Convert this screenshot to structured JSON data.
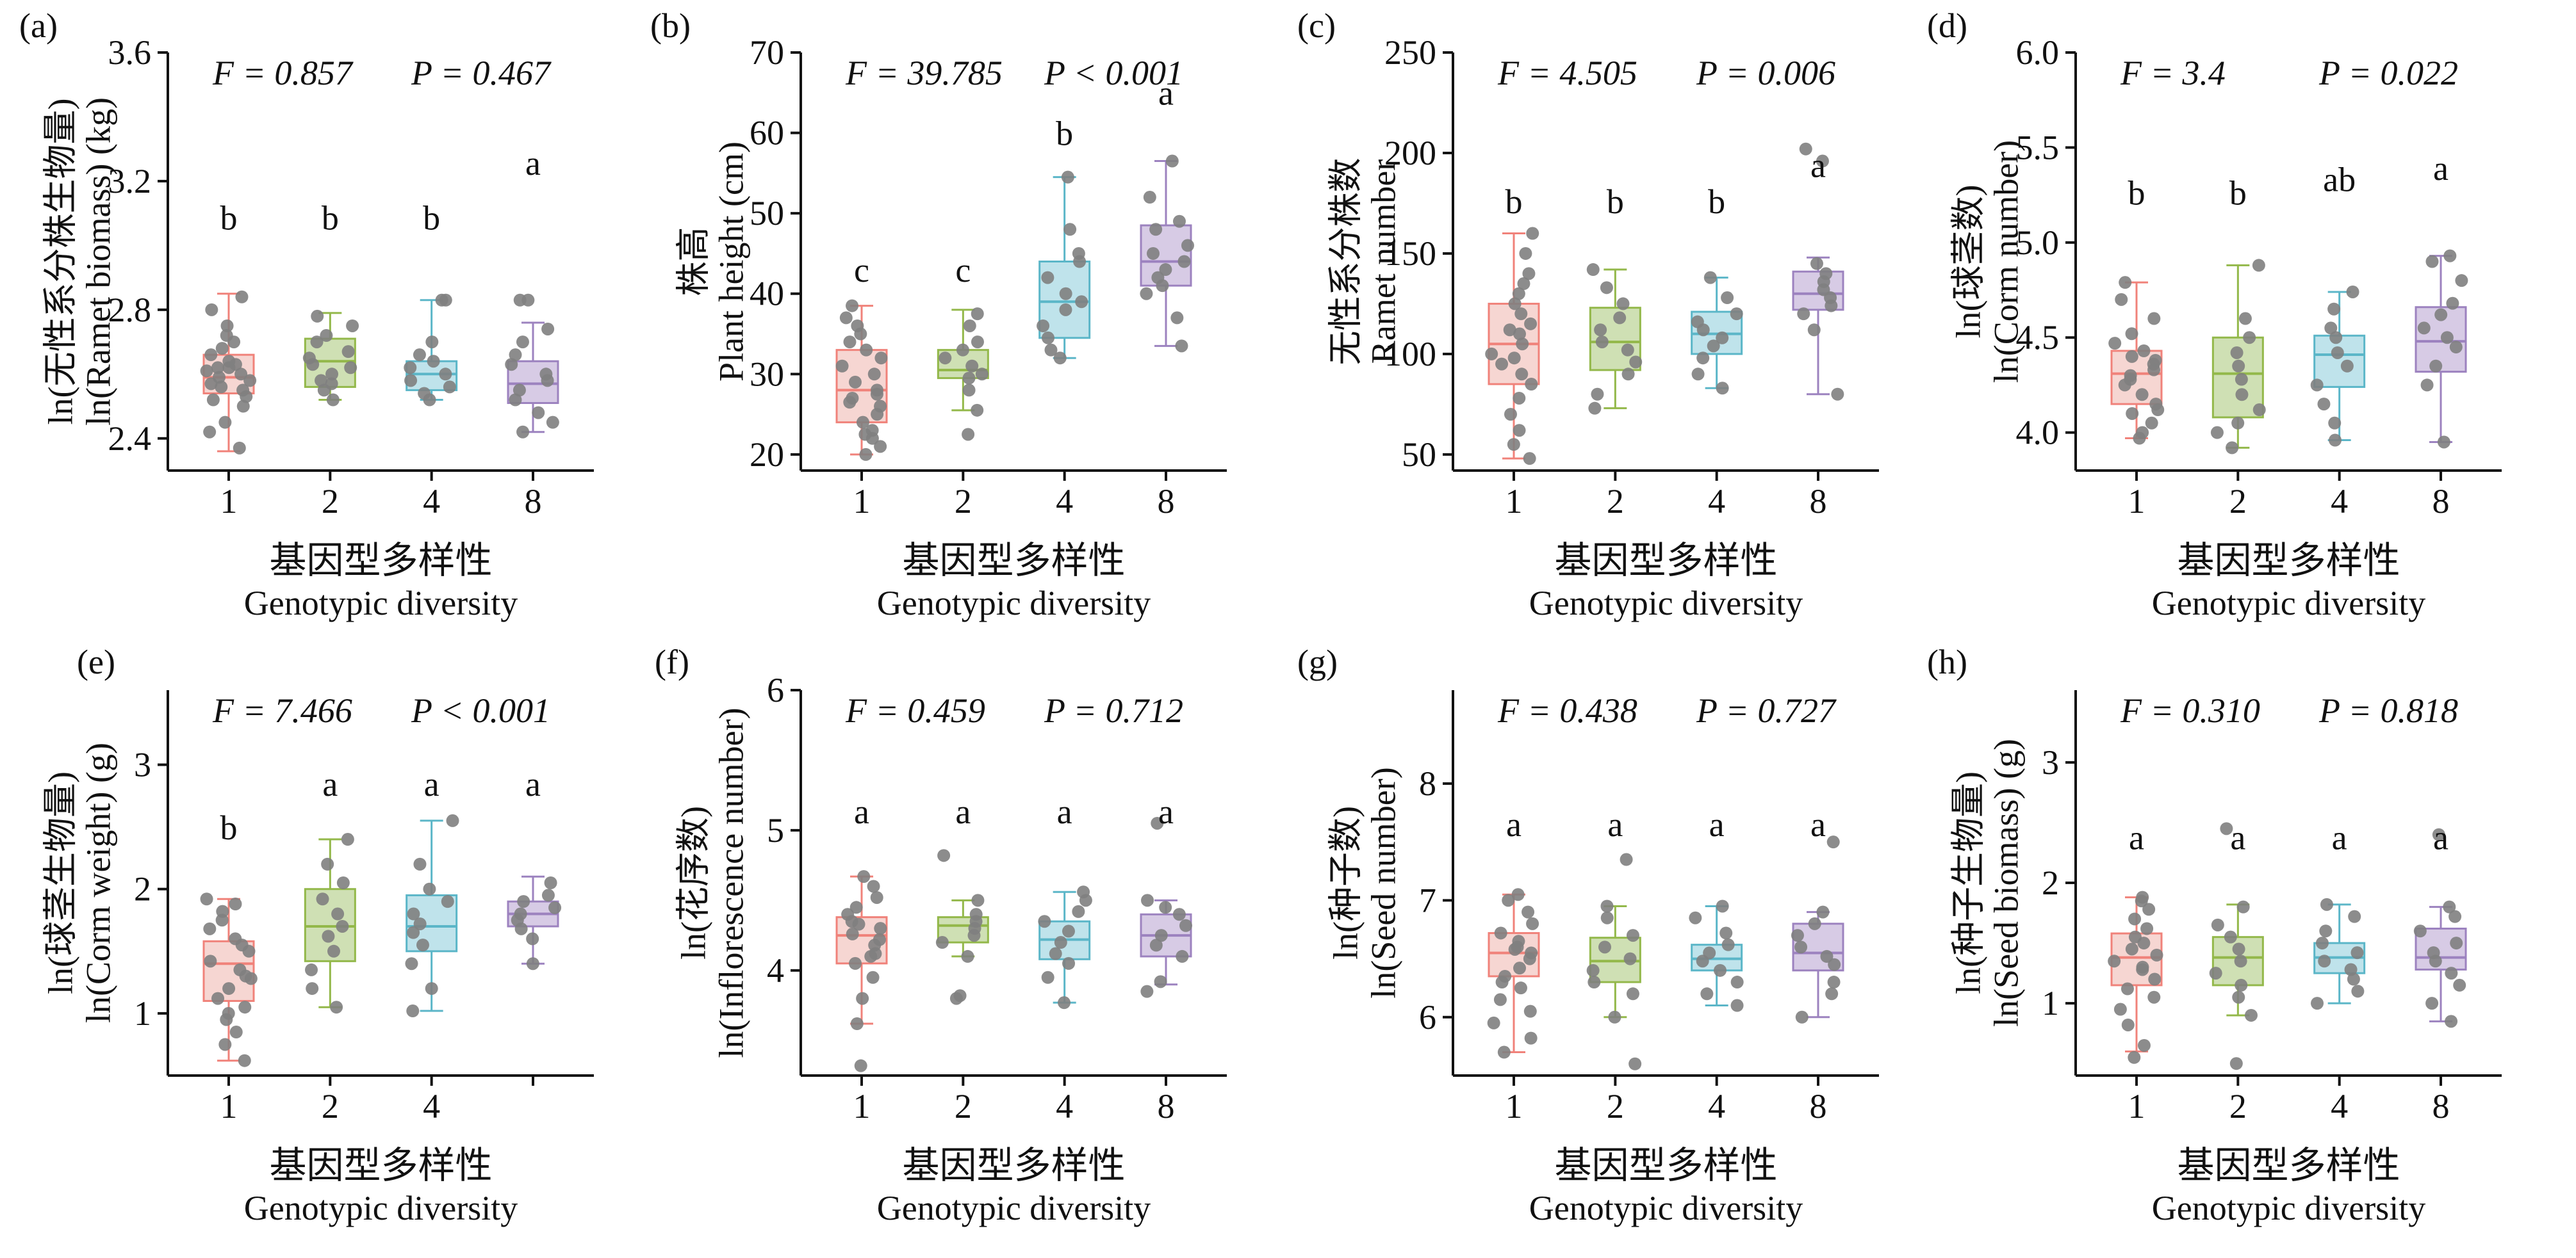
{
  "figure": {
    "group_colors": {
      "1": "#f0827a",
      "2": "#93b84a",
      "4": "#5bb6c8",
      "8": "#9c82bf"
    },
    "group_fills": {
      "1": "#f6d6d2",
      "2": "#cfe0b4",
      "4": "#bfe3eb",
      "8": "#d7cbe5"
    },
    "point_color": "#7f7f7f"
  },
  "chart_data": [
    {
      "panel": "(a)",
      "type": "box",
      "title": "",
      "ylabel_cn": "ln(无性系分株生物量)",
      "ylabel_en": "ln(Ramet biomass) (kg)",
      "xlabel_cn": "基因型多样性",
      "xlabel_en": "Genotypic diversity",
      "stat_f": "F = 0.857",
      "stat_p": "P = 0.467",
      "ylim": [
        2.3,
        3.6
      ],
      "yticks": [
        "2.4",
        "2.8",
        "3.2",
        "3.6"
      ],
      "categories": [
        "1",
        "2",
        "4",
        "8"
      ],
      "letters": [
        "b",
        "b",
        "b",
        "a"
      ],
      "letter_y": [
        3.05,
        3.05,
        3.05,
        3.22
      ],
      "boxes": [
        {
          "min": 2.36,
          "q1": 2.54,
          "median": 2.59,
          "q3": 2.66,
          "max": 2.85
        },
        {
          "min": 2.52,
          "q1": 2.56,
          "median": 2.64,
          "q3": 2.71,
          "max": 2.79
        },
        {
          "min": 2.52,
          "q1": 2.55,
          "median": 2.6,
          "q3": 2.64,
          "max": 2.83
        },
        {
          "min": 2.42,
          "q1": 2.51,
          "median": 2.57,
          "q3": 2.64,
          "max": 2.76
        }
      ],
      "points": [
        [
          2.37,
          2.42,
          2.45,
          2.5,
          2.52,
          2.55,
          2.57,
          2.58,
          2.59,
          2.6,
          2.61,
          2.62,
          2.63,
          2.64,
          2.66,
          2.68,
          2.7,
          2.72,
          2.75,
          2.8,
          2.84,
          2.53,
          2.56,
          2.62
        ],
        [
          2.52,
          2.55,
          2.58,
          2.6,
          2.63,
          2.65,
          2.67,
          2.7,
          2.72,
          2.75,
          2.78,
          2.57,
          2.62
        ],
        [
          2.52,
          2.54,
          2.56,
          2.58,
          2.6,
          2.62,
          2.64,
          2.66,
          2.7,
          2.83,
          2.83
        ],
        [
          2.42,
          2.45,
          2.48,
          2.52,
          2.55,
          2.58,
          2.6,
          2.63,
          2.66,
          2.7,
          2.74,
          2.83,
          2.83
        ]
      ]
    },
    {
      "panel": "(b)",
      "type": "box",
      "title": "",
      "ylabel_cn": "株高",
      "ylabel_en": "Plant height (cm)",
      "xlabel_cn": "基因型多样性",
      "xlabel_en": "Genotypic diversity",
      "stat_f": "F = 39.785",
      "stat_p": "P < 0.001",
      "ylim": [
        18,
        70
      ],
      "yticks": [
        "20",
        "30",
        "40",
        "50",
        "60",
        "70"
      ],
      "categories": [
        "1",
        "2",
        "4",
        "8"
      ],
      "letters": [
        "c",
        "c",
        "b",
        "a"
      ],
      "letter_y": [
        41.5,
        41.5,
        58.5,
        63.5
      ],
      "boxes": [
        {
          "min": 20,
          "q1": 24,
          "median": 28,
          "q3": 33,
          "max": 38.5
        },
        {
          "min": 25.5,
          "q1": 29.5,
          "median": 30.5,
          "q3": 33,
          "max": 38
        },
        {
          "min": 32,
          "q1": 34.5,
          "median": 39,
          "q3": 44,
          "max": 54.5
        },
        {
          "min": 33.5,
          "q1": 41,
          "median": 44,
          "q3": 48.5,
          "max": 56.5
        }
      ],
      "points": [
        [
          20,
          21,
          22,
          23,
          24,
          25,
          26,
          26.5,
          27,
          28,
          29,
          30,
          31,
          32,
          33,
          34,
          35,
          36,
          37,
          38.5,
          22.5,
          27.5
        ],
        [
          22.5,
          25.5,
          28,
          29.5,
          30,
          31,
          32,
          33,
          34,
          36,
          37.5
        ],
        [
          32,
          33,
          34.5,
          36,
          38,
          39,
          40,
          42,
          44,
          45,
          48,
          54.5
        ],
        [
          33.5,
          37,
          40,
          41,
          42,
          43,
          44,
          45,
          46,
          48,
          49,
          52,
          56.5
        ]
      ]
    },
    {
      "panel": "(c)",
      "type": "box",
      "title": "",
      "ylabel_cn": "无性系分株数",
      "ylabel_en": "Ramet number",
      "xlabel_cn": "基因型多样性",
      "xlabel_en": "Genotypic diversity",
      "stat_f": "F = 4.505",
      "stat_p": "P = 0.006",
      "ylim": [
        42,
        250
      ],
      "yticks": [
        "50",
        "100",
        "150",
        "200",
        "250"
      ],
      "categories": [
        "1",
        "2",
        "4",
        "8"
      ],
      "letters": [
        "b",
        "b",
        "b",
        "a"
      ],
      "letter_y": [
        170,
        170,
        170,
        188
      ],
      "boxes": [
        {
          "min": 48,
          "q1": 85,
          "median": 105,
          "q3": 125,
          "max": 160
        },
        {
          "min": 73,
          "q1": 92,
          "median": 106,
          "q3": 123,
          "max": 142
        },
        {
          "min": 83,
          "q1": 100,
          "median": 110,
          "q3": 121,
          "max": 138
        },
        {
          "min": 80,
          "q1": 122,
          "median": 130,
          "q3": 141,
          "max": 148
        }
      ],
      "points": [
        [
          48,
          55,
          62,
          70,
          78,
          85,
          90,
          95,
          100,
          105,
          110,
          115,
          120,
          125,
          130,
          135,
          140,
          150,
          160,
          98,
          112
        ],
        [
          73,
          80,
          90,
          96,
          102,
          106,
          112,
          118,
          125,
          133,
          142
        ],
        [
          83,
          90,
          98,
          104,
          108,
          112,
          116,
          120,
          128,
          138
        ],
        [
          80,
          112,
          120,
          124,
          128,
          132,
          136,
          140,
          145,
          196,
          202
        ]
      ]
    },
    {
      "panel": "(d)",
      "type": "box",
      "title": "",
      "ylabel_cn": "ln(球茎数)",
      "ylabel_en": "ln(Corm number)",
      "xlabel_cn": "基因型多样性",
      "xlabel_en": "Genotypic diversity",
      "stat_f": "F = 3.4",
      "stat_p": "P = 0.022",
      "ylim": [
        3.8,
        6.0
      ],
      "yticks": [
        "4.0",
        "4.5",
        "5.0",
        "5.5",
        "6.0"
      ],
      "categories": [
        "1",
        "2",
        "4",
        "8"
      ],
      "letters": [
        "b",
        "b",
        "ab",
        "a"
      ],
      "letter_y": [
        5.2,
        5.2,
        5.27,
        5.33
      ],
      "boxes": [
        {
          "min": 3.97,
          "q1": 4.15,
          "median": 4.31,
          "q3": 4.43,
          "max": 4.79
        },
        {
          "min": 3.92,
          "q1": 4.08,
          "median": 4.31,
          "q3": 4.5,
          "max": 4.88
        },
        {
          "min": 3.96,
          "q1": 4.24,
          "median": 4.41,
          "q3": 4.51,
          "max": 4.74
        },
        {
          "min": 3.95,
          "q1": 4.32,
          "median": 4.48,
          "q3": 4.66,
          "max": 4.93
        }
      ],
      "points": [
        [
          3.97,
          4.0,
          4.05,
          4.1,
          4.15,
          4.2,
          4.25,
          4.28,
          4.3,
          4.33,
          4.36,
          4.4,
          4.43,
          4.47,
          4.52,
          4.6,
          4.7,
          4.79,
          4.12,
          4.38
        ],
        [
          3.92,
          4.0,
          4.05,
          4.12,
          4.2,
          4.28,
          4.35,
          4.42,
          4.5,
          4.6,
          4.88
        ],
        [
          3.96,
          4.05,
          4.15,
          4.25,
          4.35,
          4.42,
          4.5,
          4.55,
          4.65,
          4.74
        ],
        [
          3.95,
          4.25,
          4.35,
          4.45,
          4.5,
          4.55,
          4.62,
          4.68,
          4.8,
          4.9,
          4.93
        ]
      ]
    },
    {
      "panel": "(e)",
      "type": "box",
      "title": "",
      "ylabel_cn": "ln(球茎生物量)",
      "ylabel_en": "ln(Corm weight) (g)",
      "xlabel_cn": "基因型多样性",
      "xlabel_en": "Genotypic diversity",
      "stat_f": "F = 7.466",
      "stat_p": "P < 0.001",
      "ylim": [
        0.5,
        3.6
      ],
      "yticks": [
        "1",
        "2",
        "3"
      ],
      "categories": [
        "1",
        "2",
        "4",
        "8"
      ],
      "xtick_labels": [
        "1",
        "2",
        "4",
        ""
      ],
      "letters": [
        "b",
        "a",
        "a",
        "a"
      ],
      "letter_y": [
        2.4,
        2.75,
        2.75,
        2.75
      ],
      "boxes": [
        {
          "min": 0.62,
          "q1": 1.1,
          "median": 1.4,
          "q3": 1.58,
          "max": 1.92
        },
        {
          "min": 1.05,
          "q1": 1.42,
          "median": 1.7,
          "q3": 2.0,
          "max": 2.4
        },
        {
          "min": 1.02,
          "q1": 1.5,
          "median": 1.7,
          "q3": 1.95,
          "max": 2.55
        },
        {
          "min": 1.4,
          "q1": 1.7,
          "median": 1.8,
          "q3": 1.9,
          "max": 2.1
        }
      ],
      "points": [
        [
          0.62,
          0.75,
          0.85,
          0.95,
          1.05,
          1.12,
          1.2,
          1.28,
          1.35,
          1.42,
          1.5,
          1.55,
          1.6,
          1.68,
          1.75,
          1.82,
          1.88,
          1.92,
          1.0,
          1.3
        ],
        [
          1.05,
          1.2,
          1.35,
          1.5,
          1.62,
          1.7,
          1.8,
          1.92,
          2.05,
          2.2,
          2.4
        ],
        [
          1.02,
          1.2,
          1.4,
          1.55,
          1.65,
          1.72,
          1.8,
          1.9,
          2.0,
          2.2,
          2.55
        ],
        [
          1.4,
          1.6,
          1.68,
          1.75,
          1.8,
          1.85,
          1.9,
          1.95,
          2.05
        ]
      ]
    },
    {
      "panel": "(f)",
      "type": "box",
      "title": "",
      "ylabel_cn": "ln(花序数)",
      "ylabel_en": "ln(Inflorescence number)",
      "xlabel_cn": "基因型多样性",
      "xlabel_en": "Genotypic diversity",
      "stat_f": "F = 0.459",
      "stat_p": "P = 0.712",
      "ylim": [
        3.25,
        6.0
      ],
      "yticks": [
        "4",
        "5",
        "6"
      ],
      "categories": [
        "1",
        "2",
        "4",
        "8"
      ],
      "letters": [
        "a",
        "a",
        "a",
        "a"
      ],
      "letter_y": [
        5.05,
        5.05,
        5.05,
        5.05
      ],
      "boxes": [
        {
          "min": 3.62,
          "q1": 4.05,
          "median": 4.25,
          "q3": 4.38,
          "max": 4.67
        },
        {
          "min": 4.1,
          "q1": 4.2,
          "median": 4.32,
          "q3": 4.38,
          "max": 4.5
        },
        {
          "min": 3.77,
          "q1": 4.08,
          "median": 4.22,
          "q3": 4.35,
          "max": 4.56
        },
        {
          "min": 3.9,
          "q1": 4.1,
          "median": 4.25,
          "q3": 4.4,
          "max": 4.5
        }
      ],
      "points": [
        [
          3.32,
          3.62,
          3.8,
          3.95,
          4.05,
          4.12,
          4.18,
          4.22,
          4.26,
          4.3,
          4.35,
          4.4,
          4.45,
          4.52,
          4.6,
          4.67,
          4.1,
          4.33
        ],
        [
          3.8,
          3.82,
          4.1,
          4.2,
          4.25,
          4.3,
          4.35,
          4.4,
          4.5,
          4.82
        ],
        [
          3.77,
          3.95,
          4.05,
          4.12,
          4.2,
          4.28,
          4.35,
          4.42,
          4.5,
          4.56
        ],
        [
          3.85,
          3.92,
          4.1,
          4.18,
          4.25,
          4.32,
          4.4,
          4.45,
          4.5,
          5.05
        ]
      ]
    },
    {
      "panel": "(g)",
      "type": "box",
      "title": "",
      "ylabel_cn": "ln(种子数)",
      "ylabel_en": "ln(Seed number)",
      "xlabel_cn": "基因型多样性",
      "xlabel_en": "Genotypic diversity",
      "stat_f": "F = 0.438",
      "stat_p": "P = 0.727",
      "ylim": [
        5.5,
        8.8
      ],
      "yticks": [
        "6",
        "7",
        "8"
      ],
      "categories": [
        "1",
        "2",
        "4",
        "8"
      ],
      "letters": [
        "a",
        "a",
        "a",
        "a"
      ],
      "letter_y": [
        7.55,
        7.55,
        7.55,
        7.55
      ],
      "boxes": [
        {
          "min": 5.7,
          "q1": 6.35,
          "median": 6.55,
          "q3": 6.72,
          "max": 7.05
        },
        {
          "min": 6.0,
          "q1": 6.3,
          "median": 6.48,
          "q3": 6.68,
          "max": 6.95
        },
        {
          "min": 6.1,
          "q1": 6.4,
          "median": 6.5,
          "q3": 6.62,
          "max": 6.95
        },
        {
          "min": 6.0,
          "q1": 6.4,
          "median": 6.55,
          "q3": 6.8,
          "max": 6.9
        }
      ],
      "points": [
        [
          5.7,
          5.82,
          5.95,
          6.05,
          6.15,
          6.25,
          6.35,
          6.42,
          6.5,
          6.55,
          6.6,
          6.65,
          6.72,
          6.8,
          6.9,
          7.0,
          7.05,
          6.3,
          6.58
        ],
        [
          5.6,
          6.0,
          6.2,
          6.3,
          6.4,
          6.5,
          6.6,
          6.7,
          6.85,
          6.95,
          7.35
        ],
        [
          6.1,
          6.2,
          6.3,
          6.4,
          6.48,
          6.55,
          6.62,
          6.72,
          6.85,
          6.95
        ],
        [
          6.0,
          6.2,
          6.3,
          6.45,
          6.52,
          6.6,
          6.7,
          6.8,
          6.9,
          7.5
        ]
      ]
    },
    {
      "panel": "(h)",
      "type": "box",
      "title": "",
      "ylabel_cn": "ln(种子生物量)",
      "ylabel_en": "ln(Seed biomass) (g)",
      "xlabel_cn": "基因型多样性",
      "xlabel_en": "Genotypic diversity",
      "stat_f": "F = 0.310",
      "stat_p": "P = 0.818",
      "ylim": [
        0.4,
        3.6
      ],
      "yticks": [
        "1",
        "2",
        "3"
      ],
      "categories": [
        "1",
        "2",
        "4",
        "8"
      ],
      "letters": [
        "a",
        "a",
        "a",
        "a"
      ],
      "letter_y": [
        2.28,
        2.28,
        2.28,
        2.28
      ],
      "boxes": [
        {
          "min": 0.6,
          "q1": 1.15,
          "median": 1.38,
          "q3": 1.58,
          "max": 1.88
        },
        {
          "min": 0.9,
          "q1": 1.15,
          "median": 1.38,
          "q3": 1.55,
          "max": 1.82
        },
        {
          "min": 1.0,
          "q1": 1.25,
          "median": 1.38,
          "q3": 1.5,
          "max": 1.82
        },
        {
          "min": 0.85,
          "q1": 1.28,
          "median": 1.38,
          "q3": 1.62,
          "max": 1.8
        }
      ],
      "points": [
        [
          0.55,
          0.65,
          0.82,
          0.95,
          1.05,
          1.12,
          1.2,
          1.28,
          1.35,
          1.4,
          1.45,
          1.5,
          1.55,
          1.62,
          1.7,
          1.78,
          1.85,
          1.88,
          1.3
        ],
        [
          0.5,
          0.9,
          1.05,
          1.15,
          1.25,
          1.35,
          1.45,
          1.55,
          1.65,
          1.8,
          2.45
        ],
        [
          1.0,
          1.1,
          1.2,
          1.28,
          1.35,
          1.42,
          1.5,
          1.6,
          1.72,
          1.82
        ],
        [
          0.85,
          1.0,
          1.15,
          1.25,
          1.35,
          1.42,
          1.5,
          1.6,
          1.72,
          1.8,
          2.4
        ]
      ]
    }
  ]
}
